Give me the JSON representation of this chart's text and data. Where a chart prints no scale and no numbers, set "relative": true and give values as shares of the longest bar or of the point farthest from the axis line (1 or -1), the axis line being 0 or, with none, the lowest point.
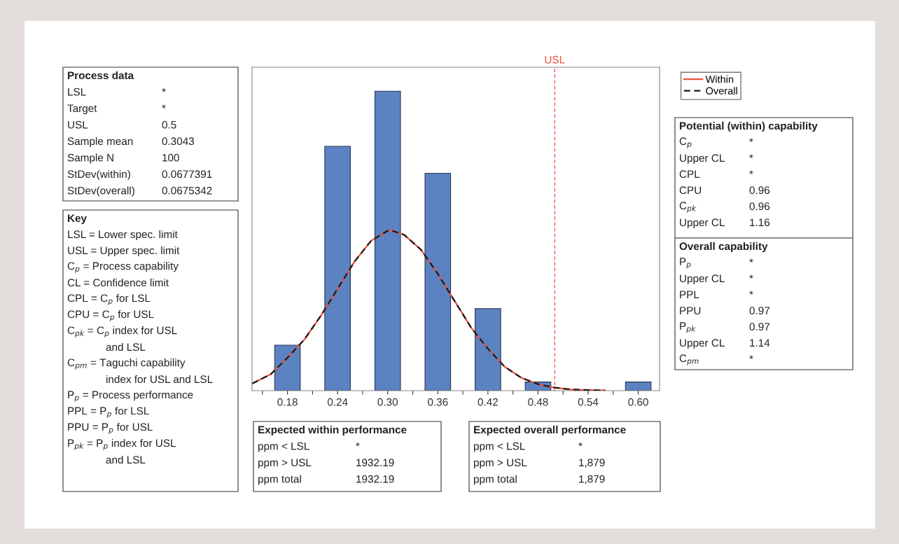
{
  "chart_data": {
    "type": "histogram",
    "relative": true,
    "grid": false,
    "legend": "top right",
    "bins": [
      0.15,
      0.21,
      0.27,
      0.33,
      0.39,
      0.45,
      0.51,
      0.57,
      0.63
    ],
    "values": [
      0.152,
      0.816,
      1,
      0.726,
      0.274,
      0.029,
      0,
      0.029
    ],
    "color": "#5b83c2",
    "xlim": [
      0.1376,
      0.6255
    ],
    "xticks": [
      {
        "value": 0.15,
        "label": null
      },
      0.18,
      {
        "value": 0.21,
        "label": null
      },
      0.24,
      {
        "value": 0.27,
        "label": null
      },
      {
        "value": 0.3,
        "label": "0.30"
      },
      {
        "value": 0.33,
        "label": null
      },
      0.36,
      {
        "value": 0.39,
        "label": null
      },
      0.42,
      {
        "value": 0.45,
        "label": null
      },
      0.48,
      {
        "value": 0.51,
        "label": null
      },
      0.54,
      {
        "value": 0.57,
        "label": null
      },
      {
        "value": 0.6,
        "label": "0.60"
      }
    ],
    "series": [
      {
        "name": "Within",
        "type": "line",
        "line_style": "solid",
        "color": "#f0503c",
        "x": [
          0.138,
          0.16,
          0.18,
          0.2,
          0.22,
          0.24,
          0.26,
          0.28,
          0.3,
          0.3043,
          0.32,
          0.34,
          0.36,
          0.38,
          0.4,
          0.42,
          0.44,
          0.46,
          0.48,
          0.5,
          0.52,
          0.54,
          0.56
        ],
        "values": [
          0.024,
          0.055,
          0.11,
          0.17,
          0.25,
          0.34,
          0.43,
          0.5,
          0.534,
          0.535,
          0.52,
          0.47,
          0.39,
          0.3,
          0.21,
          0.14,
          0.08,
          0.043,
          0.022,
          0.01,
          0.004,
          0.002,
          0.001
        ]
      },
      {
        "name": "Overall",
        "type": "line",
        "line_style": "dashed",
        "color": "#1a1a1a",
        "x": [
          0.138,
          0.16,
          0.18,
          0.2,
          0.22,
          0.24,
          0.26,
          0.28,
          0.3,
          0.3043,
          0.32,
          0.34,
          0.36,
          0.38,
          0.4,
          0.42,
          0.44,
          0.46,
          0.48,
          0.5,
          0.52,
          0.54,
          0.56
        ],
        "values": [
          0.024,
          0.055,
          0.11,
          0.17,
          0.25,
          0.34,
          0.43,
          0.5,
          0.534,
          0.535,
          0.52,
          0.47,
          0.39,
          0.3,
          0.21,
          0.14,
          0.08,
          0.043,
          0.022,
          0.01,
          0.004,
          0.002,
          0.001
        ]
      }
    ],
    "ref_lines": [
      {
        "axis": "x",
        "value": 0.5,
        "label": "USL",
        "color": "#f0503c",
        "line_style": "dashed"
      }
    ],
    "annotations": [
      "Process data\nLSL\t*\nTarget\t*\nUSL\t0.5\nSample mean\t0.3043\nSample N\t100\nStDev(within)\t0.0677391\nStDev(overall)\t0.0675342",
      "Key\nLSL = Lower spec. limit\nUSL = Upper spec. limit\nC$_{p}$ = Process capability\nCL = Confidence limit\nCPL = C$_{p}$ for LSL\nCPU = C$_{p}$ for USL\nC$_{pk}$ = C$_{p}$ index for USL\n\tand LSL\nC$_{pm}$ = Taguchi capability\n\tindex for USL and LSL\nP$_{p}$ = Process performance\nPPL = P$_{p}$ for LSL\nPPU = P$_{p}$ for USL\nP$_{pk}$ = P$_{p}$ index for USL\n\tand LSL",
      "Potential (within) capability\nC$_{p}$\t*\nUpper CL\t*\nCPL\t*\nCPU\t0.96\nC$_{pk}$\t0.96\nUpper CL\t1.16",
      "Overall capability\nP$_{p}$\t*\nUpper CL\t*\nPPL\t*\nPPU\t0.97\nP$_{pk}$\t0.97\nUpper CL\t1.14\nC$_{pm}$\t*",
      "Expected within performance\nppm < LSL\t*\nppm > USL\t1932.19\nppm total\t1932.19",
      "Expected overall performance\nppm < LSL\t*\nppm > USL\t1,879\nppm total\t1,879"
    ]
  }
}
